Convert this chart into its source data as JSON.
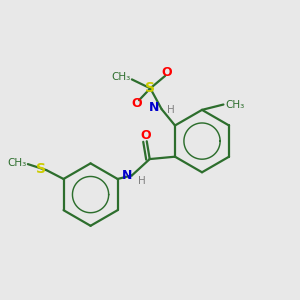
{
  "bg_color": "#e8e8e8",
  "bond_color": "#2d6e2d",
  "O_color": "#ff0000",
  "N_color": "#0000cc",
  "S_color": "#cccc00",
  "H_color": "#808080",
  "figsize": [
    3.0,
    3.0
  ],
  "dpi": 100,
  "xlim": [
    0,
    10
  ],
  "ylim": [
    0,
    10
  ]
}
